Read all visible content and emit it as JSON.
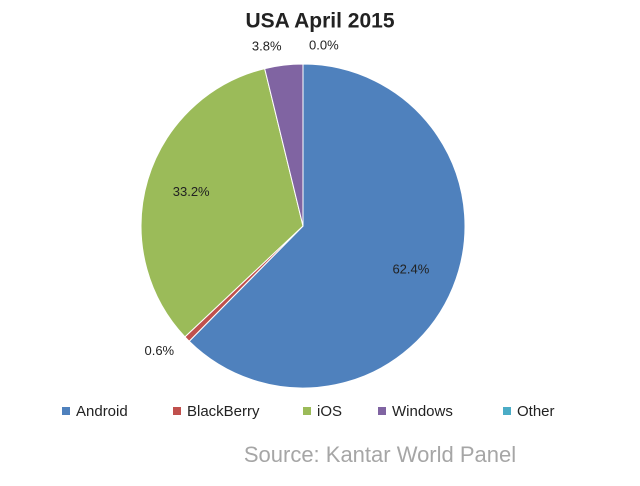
{
  "chart_data": {
    "type": "pie",
    "title": "USA April 2015",
    "categories": [
      "Android",
      "BlackBerry",
      "iOS",
      "Windows",
      "Other"
    ],
    "values": [
      62.4,
      0.6,
      33.2,
      3.8,
      0.0
    ],
    "value_labels": [
      "62.4%",
      "0.6%",
      "33.2%",
      "3.8%",
      "0.0%"
    ],
    "colors": [
      "#4f81bd",
      "#c0504d",
      "#9bbb59",
      "#8064a2",
      "#4bacc6"
    ],
    "legend": "bottom",
    "source": "Source: Kantar World Panel"
  }
}
